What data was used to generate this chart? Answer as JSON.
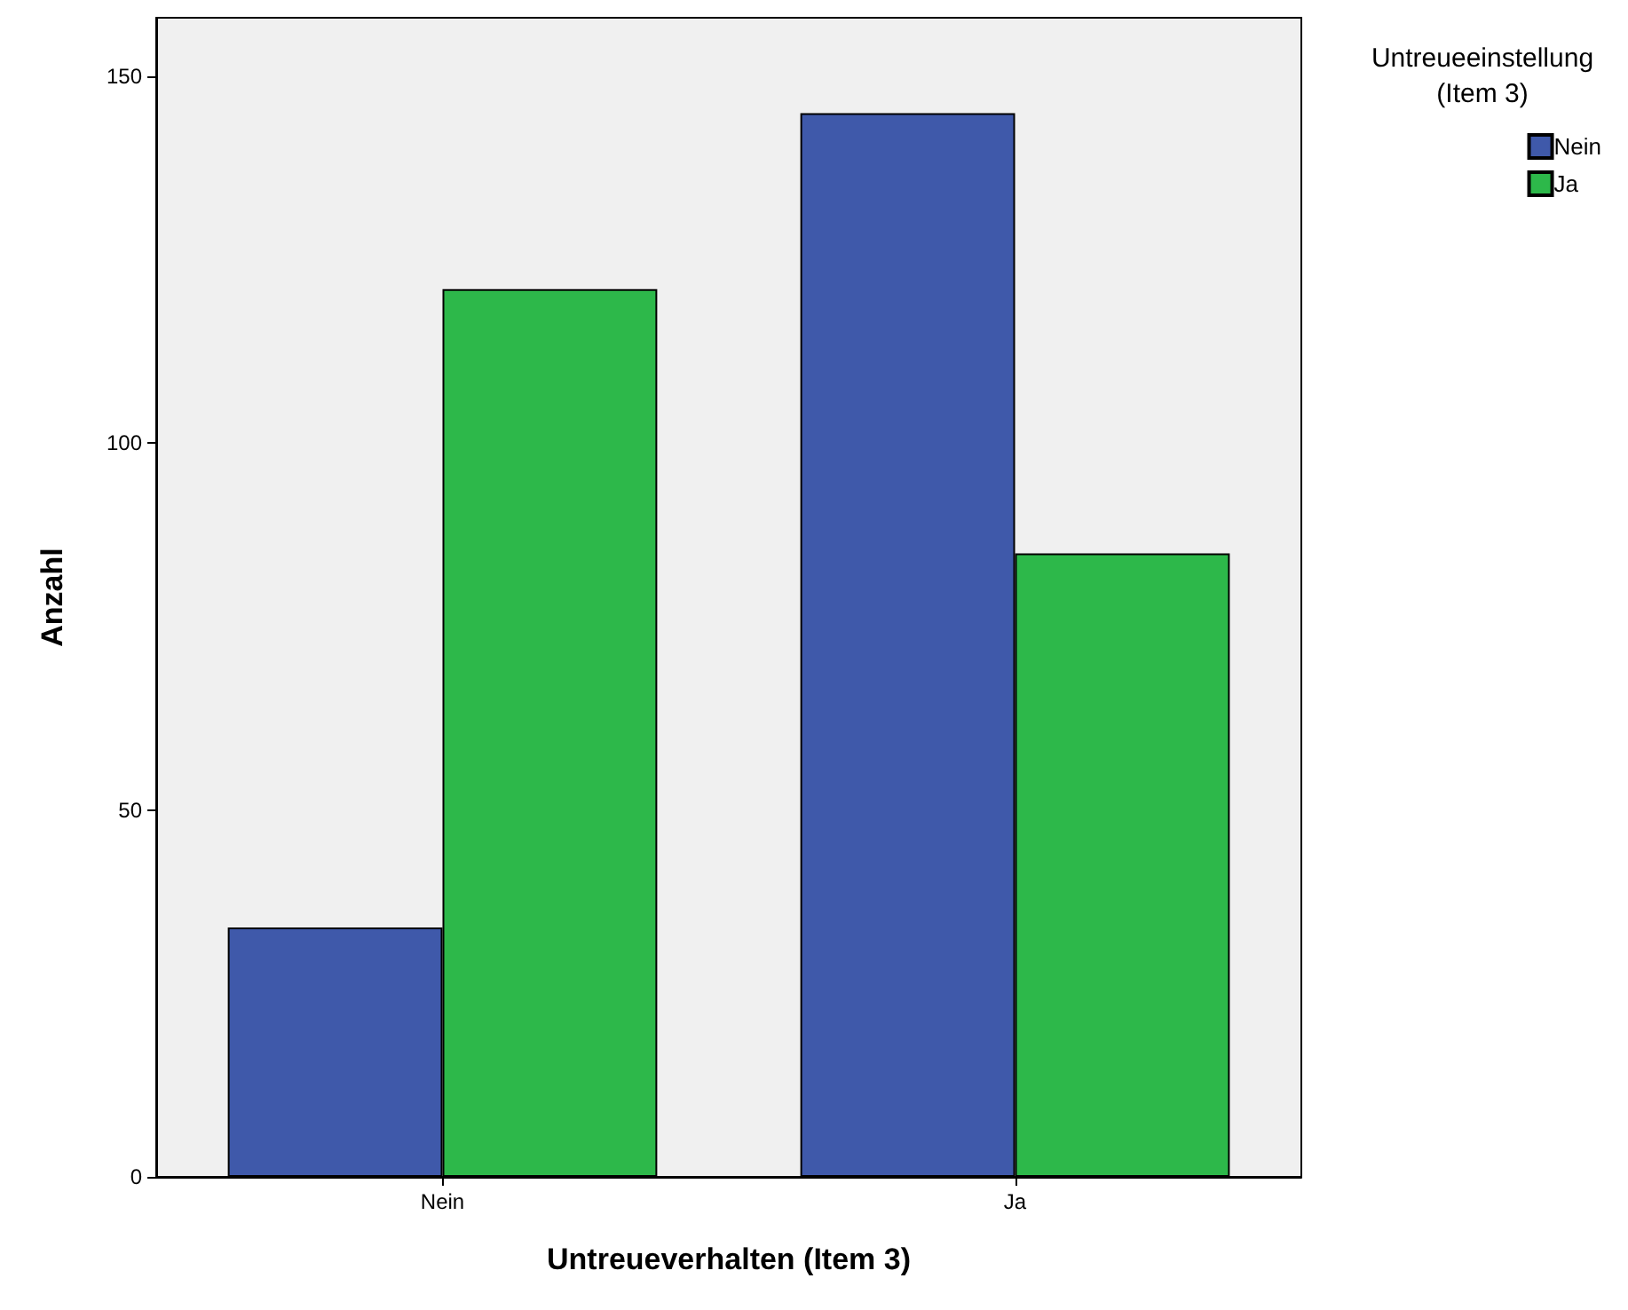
{
  "chart_data": {
    "type": "bar",
    "xlabel": "Untreueverhalten (Item 3)",
    "ylabel": "Anzahl",
    "legend_title": "Untreueeinstellung\n(Item 3)",
    "categories": [
      "Nein",
      "Ja"
    ],
    "series": [
      {
        "name": "Nein",
        "color": "#3f59aa",
        "values": [
          34,
          145
        ]
      },
      {
        "name": "Ja",
        "color": "#2db84a",
        "values": [
          121,
          85
        ]
      }
    ],
    "ylim": [
      0,
      158
    ],
    "yticks": [
      0,
      50,
      100,
      150
    ],
    "grid": false,
    "legend": "top right"
  }
}
